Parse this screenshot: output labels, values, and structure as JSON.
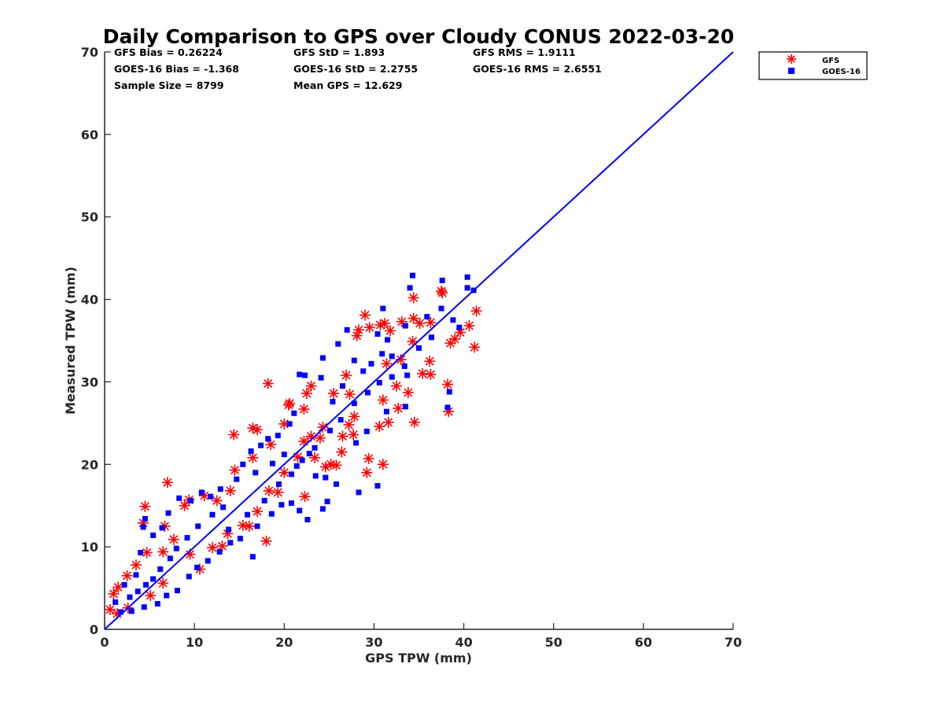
{
  "chart_data": {
    "type": "scatter",
    "title": "Daily Comparison to GPS over Cloudy CONUS 2022-03-20",
    "xlabel": "GPS TPW (mm)",
    "ylabel": "Measured TPW (mm)",
    "xlim": [
      0,
      70
    ],
    "ylim": [
      0,
      70
    ],
    "xticks": [
      "0",
      "10",
      "20",
      "30",
      "40",
      "50",
      "60",
      "70"
    ],
    "yticks": [
      "0",
      "10",
      "20",
      "30",
      "40",
      "50",
      "60",
      "70"
    ],
    "grid": false,
    "legend_position": "outside-top-right",
    "stats": [
      [
        "GFS Bias = 0.26224",
        "GFS StD = 1.893",
        "GFS RMS = 1.9111"
      ],
      [
        "GOES-16 Bias = -1.368",
        "GOES-16 StD = 2.2755",
        "GOES-16 RMS = 2.6551"
      ],
      [
        "Sample Size = 8799",
        "Mean GPS = 12.629",
        ""
      ]
    ],
    "reference_line": {
      "x": [
        0,
        70
      ],
      "y": [
        0,
        70
      ],
      "color": "#0000ff"
    },
    "series": [
      {
        "name": "GFS",
        "marker": "asterisk",
        "color": "#ff0000",
        "points": [
          [
            4.5,
            14.9
          ],
          [
            7.0,
            17.8
          ],
          [
            4.3,
            12.9
          ],
          [
            6.7,
            12.5
          ],
          [
            18.2,
            29.8
          ],
          [
            14.4,
            23.6
          ],
          [
            16.5,
            24.4
          ],
          [
            17.0,
            24.2
          ],
          [
            20.6,
            27.4
          ],
          [
            20.5,
            27.2
          ],
          [
            22.2,
            26.7
          ],
          [
            22.5,
            28.6
          ],
          [
            23.0,
            29.5
          ],
          [
            25.5,
            28.6
          ],
          [
            29.0,
            38.1
          ],
          [
            28.3,
            36.3
          ],
          [
            28.1,
            35.6
          ],
          [
            29.5,
            36.6
          ],
          [
            30.7,
            36.9
          ],
          [
            31.2,
            37.1
          ],
          [
            31.8,
            36.2
          ],
          [
            33.1,
            37.3
          ],
          [
            34.3,
            34.9
          ],
          [
            34.4,
            40.2
          ],
          [
            34.4,
            37.7
          ],
          [
            35.1,
            37.1
          ],
          [
            36.3,
            37.2
          ],
          [
            37.5,
            41.0
          ],
          [
            37.6,
            40.8
          ],
          [
            38.5,
            34.7
          ],
          [
            39.0,
            35.2
          ],
          [
            39.6,
            36.0
          ],
          [
            40.6,
            36.8
          ],
          [
            41.2,
            34.2
          ],
          [
            41.4,
            38.6
          ],
          [
            38.3,
            26.4
          ],
          [
            38.2,
            29.7
          ],
          [
            34.5,
            25.1
          ],
          [
            29.4,
            20.7
          ],
          [
            29.2,
            19.0
          ],
          [
            31.0,
            20.0
          ],
          [
            25.2,
            20.0
          ],
          [
            25.8,
            19.9
          ],
          [
            26.5,
            23.4
          ],
          [
            27.2,
            24.8
          ],
          [
            27.8,
            25.8
          ],
          [
            31.0,
            27.8
          ],
          [
            32.5,
            29.5
          ],
          [
            31.4,
            32.2
          ],
          [
            33.0,
            32.7
          ],
          [
            36.2,
            32.5
          ],
          [
            35.4,
            31.0
          ],
          [
            30.6,
            24.6
          ],
          [
            32.7,
            26.8
          ],
          [
            31.6,
            25.1
          ],
          [
            21.5,
            20.9
          ],
          [
            23.0,
            23.4
          ],
          [
            24.6,
            19.7
          ],
          [
            18.3,
            16.8
          ],
          [
            20.0,
            19.0
          ],
          [
            14.0,
            16.8
          ],
          [
            12.5,
            15.6
          ],
          [
            11.1,
            16.2
          ],
          [
            8.9,
            15.0
          ],
          [
            9.4,
            15.7
          ],
          [
            7.7,
            10.9
          ],
          [
            18.0,
            10.7
          ],
          [
            16.1,
            12.5
          ],
          [
            13.7,
            11.6
          ],
          [
            12.0,
            9.9
          ],
          [
            9.5,
            9.1
          ],
          [
            6.5,
            9.4
          ],
          [
            4.7,
            9.3
          ],
          [
            3.5,
            7.8
          ],
          [
            2.5,
            6.5
          ],
          [
            1.5,
            5.1
          ],
          [
            1.0,
            4.3
          ],
          [
            0.6,
            2.4
          ],
          [
            1.4,
            1.9
          ],
          [
            2.6,
            2.6
          ],
          [
            5.1,
            4.1
          ],
          [
            6.5,
            5.6
          ],
          [
            10.6,
            7.3
          ],
          [
            13.1,
            10.1
          ],
          [
            15.4,
            12.6
          ],
          [
            17.0,
            14.3
          ],
          [
            19.3,
            16.6
          ],
          [
            22.3,
            16.1
          ],
          [
            26.4,
            21.5
          ],
          [
            27.3,
            28.5
          ],
          [
            24.3,
            24.5
          ],
          [
            22.2,
            22.8
          ],
          [
            20.0,
            24.9
          ],
          [
            18.5,
            22.4
          ],
          [
            16.5,
            20.8
          ],
          [
            14.5,
            19.3
          ],
          [
            23.4,
            20.8
          ],
          [
            24.0,
            23.2
          ],
          [
            27.7,
            23.6
          ],
          [
            26.9,
            30.8
          ],
          [
            36.3,
            30.9
          ],
          [
            33.8,
            28.7
          ]
        ]
      },
      {
        "name": "GOES-16",
        "marker": "square",
        "color": "#0000ff",
        "points": [
          [
            34.3,
            42.9
          ],
          [
            37.6,
            42.3
          ],
          [
            40.4,
            42.7
          ],
          [
            40.4,
            41.4
          ],
          [
            41.1,
            41.1
          ],
          [
            34.0,
            41.4
          ],
          [
            31.0,
            38.9
          ],
          [
            27.0,
            36.3
          ],
          [
            26.0,
            34.6
          ],
          [
            30.4,
            35.8
          ],
          [
            31.5,
            35.1
          ],
          [
            33.5,
            36.8
          ],
          [
            35.9,
            37.9
          ],
          [
            37.5,
            38.9
          ],
          [
            38.8,
            37.5
          ],
          [
            39.5,
            36.6
          ],
          [
            38.2,
            26.9
          ],
          [
            38.4,
            28.8
          ],
          [
            33.7,
            30.8
          ],
          [
            32.0,
            33.1
          ],
          [
            30.9,
            33.4
          ],
          [
            29.7,
            32.2
          ],
          [
            28.8,
            31.3
          ],
          [
            27.8,
            32.6
          ],
          [
            26.5,
            29.5
          ],
          [
            25.4,
            27.6
          ],
          [
            24.1,
            30.5
          ],
          [
            24.3,
            32.9
          ],
          [
            21.7,
            30.9
          ],
          [
            22.3,
            30.8
          ],
          [
            21.1,
            26.2
          ],
          [
            20.6,
            24.9
          ],
          [
            19.3,
            23.5
          ],
          [
            18.2,
            23.1
          ],
          [
            16.8,
            19.0
          ],
          [
            17.4,
            22.3
          ],
          [
            18.7,
            20.1
          ],
          [
            20.0,
            21.2
          ],
          [
            21.4,
            19.8
          ],
          [
            22.8,
            21.3
          ],
          [
            23.5,
            18.6
          ],
          [
            24.6,
            18.4
          ],
          [
            25.8,
            17.6
          ],
          [
            28.3,
            16.6
          ],
          [
            30.4,
            17.4
          ],
          [
            24.8,
            15.5
          ],
          [
            24.3,
            14.6
          ],
          [
            22.6,
            13.3
          ],
          [
            21.7,
            14.4
          ],
          [
            20.8,
            15.3
          ],
          [
            19.7,
            15.1
          ],
          [
            18.6,
            14.0
          ],
          [
            17.0,
            12.5
          ],
          [
            16.5,
            8.8
          ],
          [
            15.1,
            11.0
          ],
          [
            14.0,
            10.5
          ],
          [
            12.8,
            9.4
          ],
          [
            11.5,
            8.3
          ],
          [
            10.3,
            7.5
          ],
          [
            9.4,
            6.4
          ],
          [
            8.1,
            4.7
          ],
          [
            6.9,
            4.1
          ],
          [
            5.9,
            3.1
          ],
          [
            4.4,
            2.7
          ],
          [
            3.0,
            2.2
          ],
          [
            1.8,
            2.1
          ],
          [
            1.2,
            3.3
          ],
          [
            2.2,
            5.4
          ],
          [
            3.5,
            6.6
          ],
          [
            4.0,
            9.3
          ],
          [
            4.5,
            13.4
          ],
          [
            4.3,
            12.4
          ],
          [
            5.4,
            11.4
          ],
          [
            6.4,
            12.3
          ],
          [
            7.1,
            14.1
          ],
          [
            8.3,
            15.9
          ],
          [
            9.6,
            15.6
          ],
          [
            10.8,
            16.6
          ],
          [
            11.8,
            16.1
          ],
          [
            12.9,
            17.0
          ],
          [
            14.7,
            18.2
          ],
          [
            15.4,
            20.0
          ],
          [
            16.3,
            21.6
          ],
          [
            13.2,
            14.8
          ],
          [
            12.0,
            13.9
          ],
          [
            10.4,
            12.5
          ],
          [
            9.2,
            11.1
          ],
          [
            8.0,
            9.8
          ],
          [
            7.3,
            8.6
          ],
          [
            6.2,
            7.3
          ],
          [
            5.4,
            6.1
          ],
          [
            4.6,
            5.4
          ],
          [
            3.7,
            4.6
          ],
          [
            2.8,
            3.9
          ],
          [
            13.8,
            12.1
          ],
          [
            15.9,
            13.9
          ],
          [
            17.8,
            15.6
          ],
          [
            19.4,
            17.6
          ],
          [
            20.8,
            18.8
          ],
          [
            22.0,
            20.5
          ],
          [
            23.4,
            22.0
          ],
          [
            25.1,
            24.1
          ],
          [
            26.3,
            25.4
          ],
          [
            27.8,
            27.4
          ],
          [
            29.3,
            28.7
          ],
          [
            30.6,
            29.9
          ],
          [
            32.0,
            30.6
          ],
          [
            33.4,
            31.9
          ],
          [
            35.0,
            34.1
          ],
          [
            36.4,
            35.4
          ],
          [
            29.2,
            24.0
          ],
          [
            31.4,
            26.4
          ],
          [
            33.5,
            27.0
          ],
          [
            28.0,
            22.6
          ]
        ]
      }
    ]
  }
}
